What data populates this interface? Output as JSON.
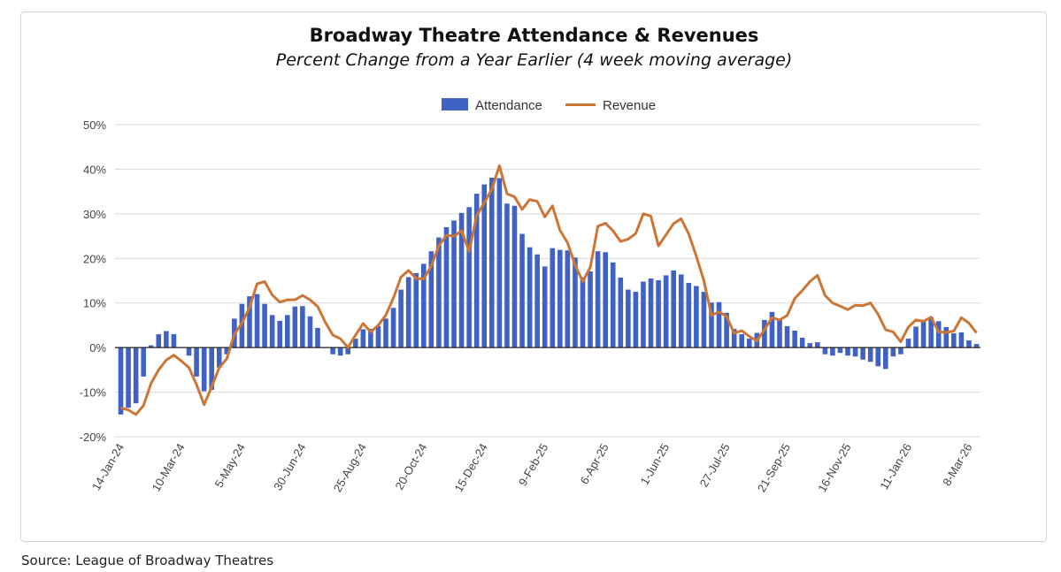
{
  "chart_data": {
    "type": "bar",
    "title": "Broadway Theatre Attendance & Revenues",
    "subtitle": "Percent Change from a Year Earlier (4 week moving average)",
    "source": "Source: League of Broadway Theatres",
    "xlabel": "",
    "ylabel": "",
    "ylim": [
      -20,
      50
    ],
    "yticks": [
      "-20%",
      "-10%",
      "0%",
      "10%",
      "20%",
      "30%",
      "40%",
      "50%"
    ],
    "grid": true,
    "legend": {
      "position": "top-center",
      "entries": [
        "Attendance",
        "Revenue"
      ]
    },
    "tick_labels": [
      {
        "index": 0,
        "label": "14-Jan-24"
      },
      {
        "index": 8,
        "label": "10-Mar-24"
      },
      {
        "index": 16,
        "label": "5-May-24"
      },
      {
        "index": 24,
        "label": "30-Jun-24"
      },
      {
        "index": 32,
        "label": "25-Aug-24"
      },
      {
        "index": 40,
        "label": "20-Oct-24"
      },
      {
        "index": 48,
        "label": "15-Dec-24"
      },
      {
        "index": 56,
        "label": "9-Feb-25"
      },
      {
        "index": 64,
        "label": "6-Apr-25"
      },
      {
        "index": 72,
        "label": "1-Jun-25"
      },
      {
        "index": 80,
        "label": "27-Jul-25"
      },
      {
        "index": 88,
        "label": "21-Sep-25"
      },
      {
        "index": 96,
        "label": "16-Nov-25"
      },
      {
        "index": 104,
        "label": "11-Jan-26"
      },
      {
        "index": 112,
        "label": "8-Mar-26"
      }
    ],
    "series": [
      {
        "name": "Attendance",
        "kind": "bar",
        "color": "#4062c4",
        "values": [
          -15,
          -13.5,
          -12.5,
          -6.5,
          0.5,
          3,
          3.7,
          3,
          0,
          -1.8,
          -6.5,
          -9.8,
          -9.5,
          -4.5,
          -1.5,
          6.5,
          9.8,
          11.5,
          12,
          9.8,
          7.3,
          6,
          7.3,
          9.2,
          9.3,
          7,
          4.4,
          0,
          -1.5,
          -1.8,
          -1.5,
          2,
          4.1,
          4.2,
          4.8,
          6.5,
          8.9,
          13,
          15.8,
          16.7,
          18.8,
          21.6,
          24.7,
          27,
          28.5,
          30.2,
          31.5,
          34.5,
          36.6,
          38.1,
          38,
          32.3,
          31.8,
          25.5,
          22.5,
          20.9,
          18.2,
          22.3,
          21.9,
          21.8,
          20.2,
          15.8,
          17.1,
          21.6,
          21.4,
          19.1,
          15.7,
          13,
          12.5,
          14.8,
          15.5,
          15.1,
          16.2,
          17.3,
          16.4,
          14.5,
          13.8,
          12.5,
          10.1,
          10.2,
          7.8,
          4.2,
          3,
          2,
          3.3,
          6.2,
          8,
          6.5,
          4.8,
          3.8,
          2.2,
          1,
          1.2,
          -1.5,
          -1.8,
          -1.2,
          -1.8,
          -2,
          -2.7,
          -3.2,
          -4.2,
          -4.8,
          -2,
          -1.5,
          2,
          4.7,
          5.9,
          6.8,
          5.9,
          4.6,
          3.2,
          3.4,
          1.6,
          0.8
        ]
      },
      {
        "name": "Revenue",
        "kind": "line",
        "color": "#cd7534",
        "values": [
          -13.5,
          -14,
          -15,
          -13,
          -8,
          -5,
          -2.8,
          -1.7,
          -3,
          -4.5,
          -8.3,
          -12.8,
          -8.8,
          -4.5,
          -2.5,
          3,
          5.5,
          9,
          14.3,
          14.8,
          11.8,
          10.2,
          10.7,
          10.7,
          11.7,
          10.7,
          9.2,
          5.7,
          2.8,
          2,
          0,
          2.8,
          5.4,
          3.5,
          5,
          7.3,
          11.1,
          15.8,
          17.3,
          15.5,
          15.4,
          18.3,
          22.8,
          25.2,
          25,
          26.2,
          21.6,
          29.6,
          32.5,
          35.5,
          40.8,
          34.5,
          33.8,
          31,
          33.2,
          32.8,
          29.3,
          31.8,
          26.3,
          23.5,
          18.5,
          14.8,
          18,
          27.2,
          27.9,
          26.2,
          23.8,
          24.3,
          25.6,
          30,
          29.5,
          22.8,
          25.3,
          27.8,
          28.9,
          25.5,
          20.5,
          15,
          7.2,
          8,
          7,
          3.2,
          3.8,
          2.5,
          1.5,
          4,
          6.7,
          6.2,
          7.2,
          11,
          12.8,
          14.8,
          16.2,
          11.7,
          10,
          9.3,
          8.5,
          9.5,
          9.4,
          10,
          7.5,
          4,
          3.5,
          1.3,
          4.6,
          6.2,
          5.9,
          6.8,
          3.5,
          3.4,
          3.7,
          6.7,
          5.5,
          3.3
        ]
      }
    ]
  }
}
